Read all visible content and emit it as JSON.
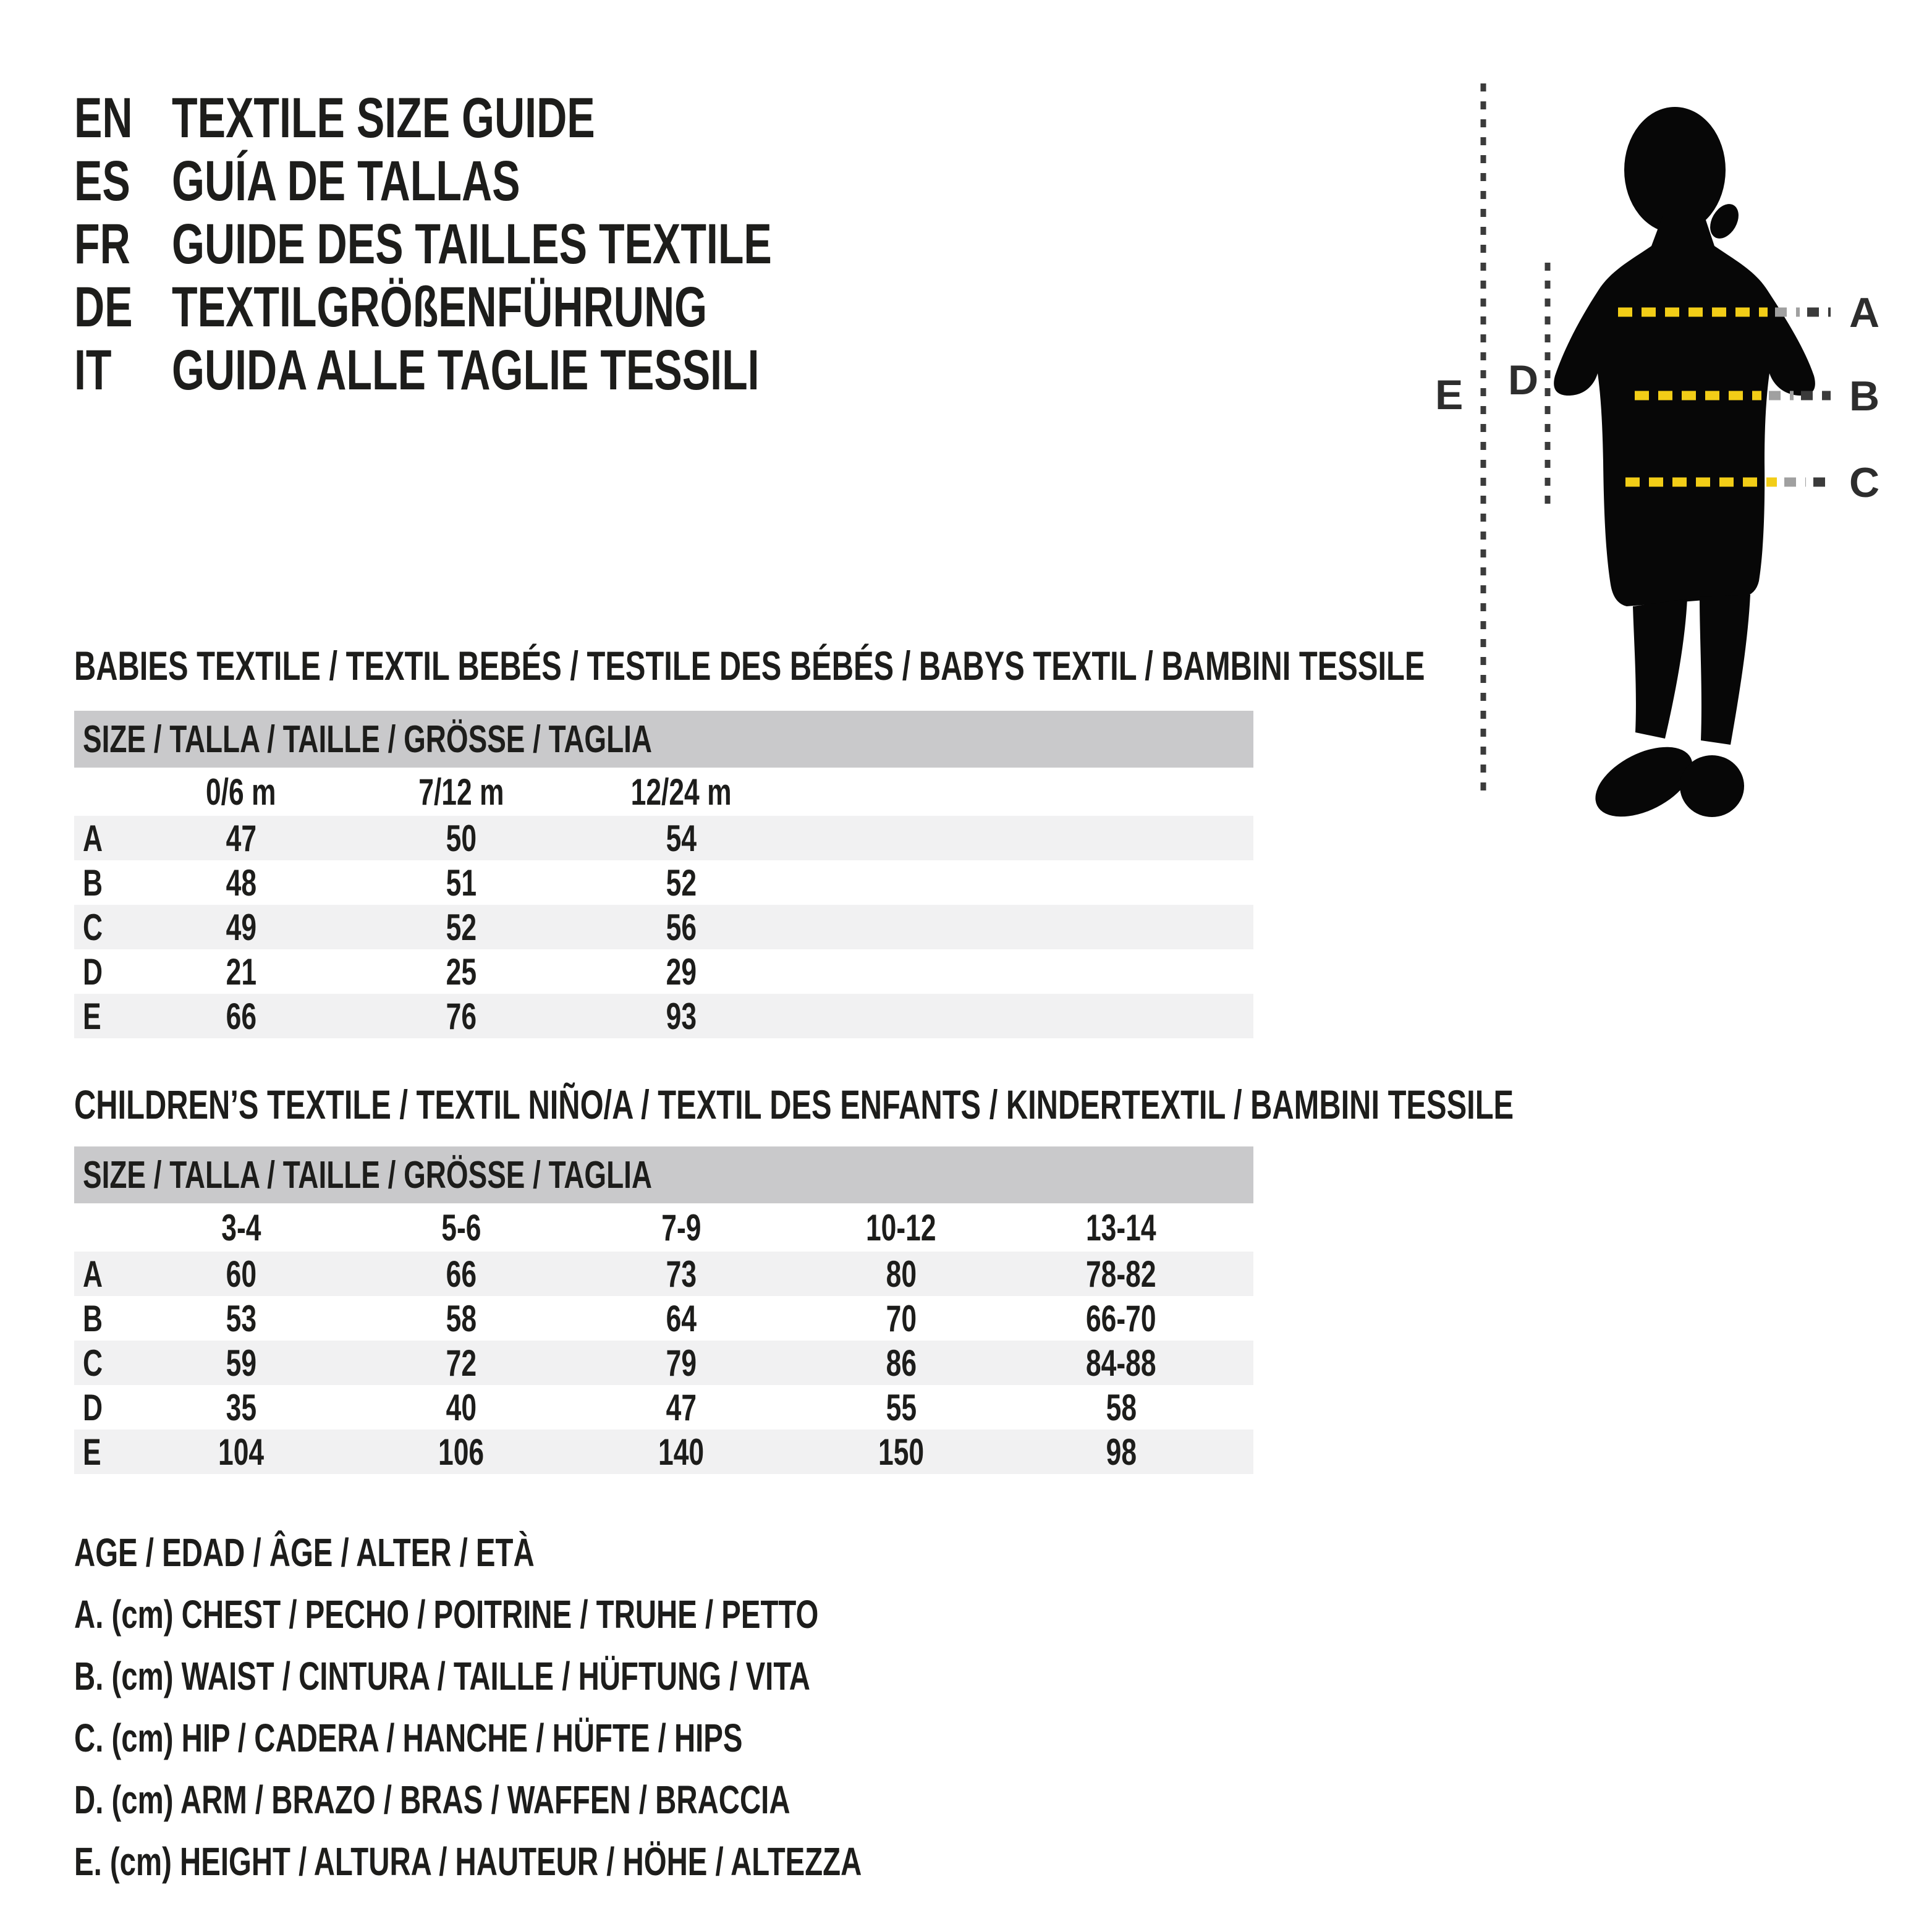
{
  "colors": {
    "bg": "#ffffff",
    "text": "#1d1d1b",
    "silhouette": "#070707",
    "yellow": "#f2cd17",
    "dark": "#3b3b3b",
    "bar": "#c9c9cb",
    "stripe": "#f1f1f2"
  },
  "header": {
    "items": [
      {
        "code": "EN",
        "title": "TEXTILE SIZE GUIDE"
      },
      {
        "code": "ES",
        "title": "GUÍA DE TALLAS"
      },
      {
        "code": "FR",
        "title": "GUIDE DES TAILLES TEXTILE"
      },
      {
        "code": "DE",
        "title": "TEXTILGRÖßENFÜHRUNG"
      },
      {
        "code": "IT",
        "title": "GUIDA ALLE TAGLIE TESSILI"
      }
    ]
  },
  "figure": {
    "labels": [
      "A",
      "B",
      "C",
      "D",
      "E"
    ]
  },
  "babies_table": {
    "section_title": "BABIES TEXTILE / TEXTIL BEBÉS / TESTILE DES BÉBÉS / BABYS TEXTIL / BAMBINI TESSILE",
    "header": "SIZE / TALLA / TAILLE / GRÖSSE / TAGLIA",
    "columns": [
      "0/6 m",
      "7/12 m",
      "12/24 m"
    ],
    "rows": [
      {
        "label": "A",
        "values": [
          "47",
          "50",
          "54"
        ]
      },
      {
        "label": "B",
        "values": [
          "48",
          "51",
          "52"
        ]
      },
      {
        "label": "C",
        "values": [
          "49",
          "52",
          "56"
        ]
      },
      {
        "label": "D",
        "values": [
          "21",
          "25",
          "29"
        ]
      },
      {
        "label": "E",
        "values": [
          "66",
          "76",
          "93"
        ]
      }
    ]
  },
  "children_table": {
    "section_title": "CHILDREN’S TEXTILE / TEXTIL NIÑO/A / TEXTIL DES ENFANTS / KINDERTEXTIL / BAMBINI TESSILE",
    "header": "SIZE / TALLA / TAILLE / GRÖSSE / TAGLIA",
    "columns": [
      "3-4",
      "5-6",
      "7-9",
      "10-12",
      "13-14"
    ],
    "rows": [
      {
        "label": "A",
        "values": [
          "60",
          "66",
          "73",
          "80",
          "78-82"
        ]
      },
      {
        "label": "B",
        "values": [
          "53",
          "58",
          "64",
          "70",
          "66-70"
        ]
      },
      {
        "label": "C",
        "values": [
          "59",
          "72",
          "79",
          "86",
          "84-88"
        ]
      },
      {
        "label": "D",
        "values": [
          "35",
          "40",
          "47",
          "55",
          "58"
        ]
      },
      {
        "label": "E",
        "values": [
          "104",
          "106",
          "140",
          "150",
          "98"
        ]
      }
    ]
  },
  "legend": {
    "lines": [
      "AGE / EDAD / ÂGE / ALTER / ETÀ",
      "A. (cm) CHEST / PECHO / POITRINE / TRUHE / PETTO",
      "B. (cm) WAIST / CINTURA / TAILLE / HÜFTUNG / VITA",
      "C. (cm) HIP / CADERA / HANCHE / HÜFTE / HIPS",
      "D. (cm) ARM / BRAZO / BRAS / WAFFEN / BRACCIA",
      "E. (cm) HEIGHT / ALTURA / HAUTEUR / HÖHE / ALTEZZA"
    ]
  }
}
